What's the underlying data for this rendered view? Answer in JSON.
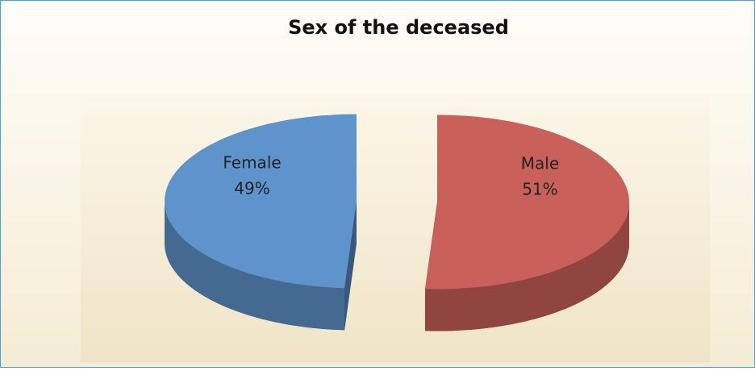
{
  "chart_data": {
    "type": "pie",
    "title": "Sex of the deceased",
    "categories": [
      "Male",
      "Female"
    ],
    "values": [
      51,
      49
    ],
    "value_labels": [
      "51%",
      "49%"
    ],
    "colors": [
      "#c9605a",
      "#5f93cb"
    ]
  }
}
